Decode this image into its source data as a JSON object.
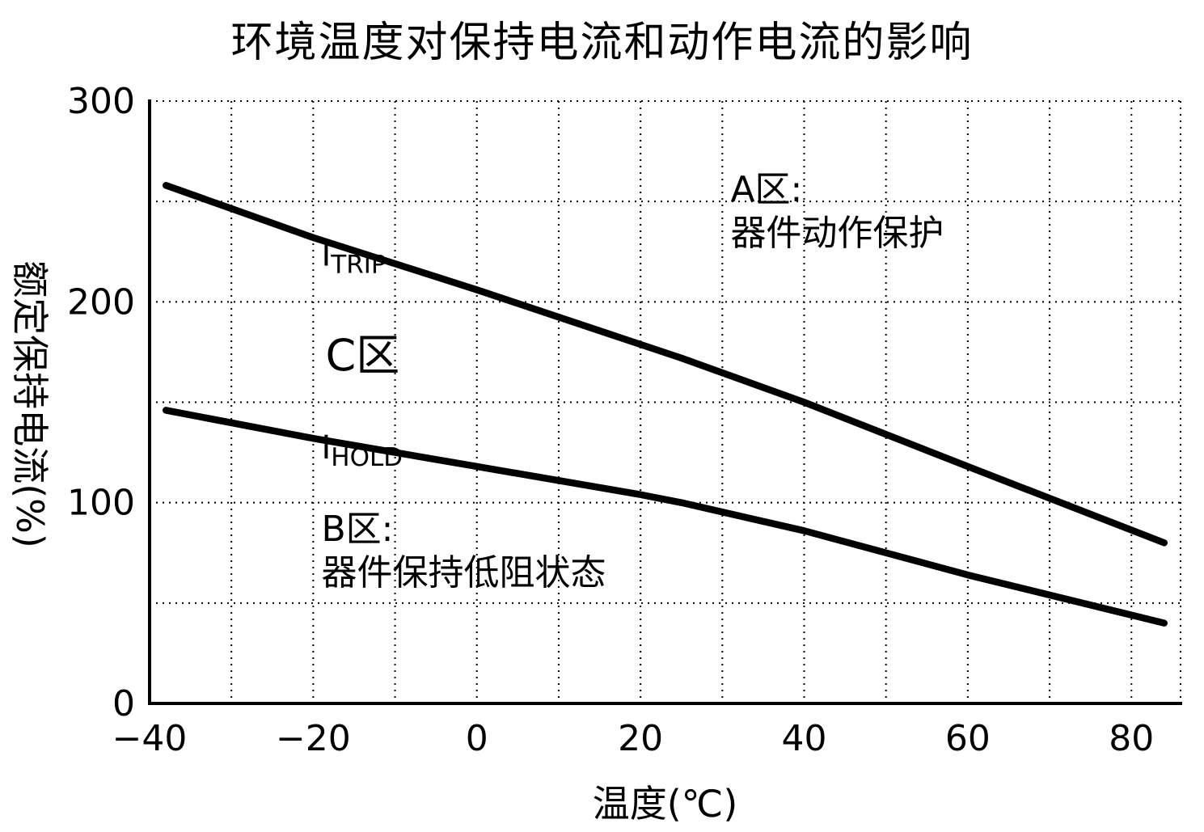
{
  "title": "环境温度对保持电流和动作电流的影响",
  "chart_data": {
    "type": "line",
    "title": "环境温度对保持电流和动作电流的影响",
    "xlabel": "温度(℃)",
    "ylabel": "额定保持电流(%)",
    "xlim": [
      -40,
      86
    ],
    "ylim": [
      0,
      300
    ],
    "x_tick_values": [
      -40,
      -20,
      0,
      20,
      40,
      60,
      80
    ],
    "x_tick_labels": [
      "−40",
      "−20",
      "0",
      "20",
      "40",
      "60",
      "80"
    ],
    "y_tick_values": [
      0,
      100,
      200,
      300
    ],
    "y_tick_labels": [
      "0",
      "100",
      "200",
      "300"
    ],
    "grid": {
      "style": "dotted",
      "x_values": [
        -30,
        -20,
        -10,
        0,
        10,
        20,
        30,
        40,
        50,
        60,
        70,
        80,
        86
      ],
      "y_values": [
        50,
        100,
        150,
        200,
        250,
        300
      ]
    },
    "series": [
      {
        "name": "I_TRIP",
        "points": [
          [
            -38,
            258
          ],
          [
            -20,
            232
          ],
          [
            0,
            206
          ],
          [
            25,
            172
          ],
          [
            40,
            150
          ],
          [
            60,
            118
          ],
          [
            84,
            80
          ]
        ]
      },
      {
        "name": "I_HOLD",
        "points": [
          [
            -38,
            146
          ],
          [
            -20,
            132
          ],
          [
            0,
            118
          ],
          [
            20,
            104
          ],
          [
            25,
            100
          ],
          [
            40,
            86
          ],
          [
            60,
            64
          ],
          [
            84,
            40
          ]
        ]
      }
    ],
    "annotations": [
      {
        "name": "itrip-label",
        "x": -19,
        "y": 218,
        "main": "I",
        "sub": "TRIP",
        "size": 40
      },
      {
        "name": "ihold-label",
        "x": -19,
        "y": 122,
        "main": "I",
        "sub": "HOLD",
        "size": 40
      },
      {
        "name": "zone-c-label",
        "x": -18.5,
        "y": 166,
        "lines": [
          "C区"
        ],
        "size": 54
      },
      {
        "name": "zone-a-label",
        "x": 31,
        "y": 250,
        "lines": [
          "A区:",
          "器件动作保护"
        ],
        "size": 44
      },
      {
        "name": "zone-b-label",
        "x": -19,
        "y": 81,
        "lines": [
          "B区:",
          "器件保持低阻状态"
        ],
        "size": 44
      }
    ],
    "legend": "none",
    "grid_on": true
  }
}
